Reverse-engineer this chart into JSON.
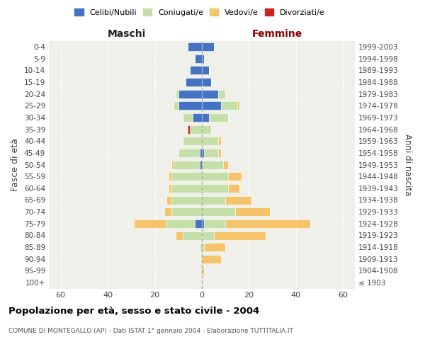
{
  "age_groups": [
    "100+",
    "95-99",
    "90-94",
    "85-89",
    "80-84",
    "75-79",
    "70-74",
    "65-69",
    "60-64",
    "55-59",
    "50-54",
    "45-49",
    "40-44",
    "35-39",
    "30-34",
    "25-29",
    "20-24",
    "15-19",
    "10-14",
    "5-9",
    "0-4"
  ],
  "birth_years": [
    "≤ 1903",
    "1904-1908",
    "1909-1913",
    "1914-1918",
    "1919-1923",
    "1924-1928",
    "1929-1933",
    "1934-1938",
    "1939-1943",
    "1944-1948",
    "1949-1953",
    "1954-1958",
    "1959-1963",
    "1964-1968",
    "1969-1973",
    "1974-1978",
    "1979-1983",
    "1984-1988",
    "1989-1993",
    "1994-1998",
    "1999-2003"
  ],
  "males_celibi": [
    0,
    0,
    0,
    0,
    0,
    3,
    0,
    0,
    0,
    0,
    1,
    1,
    0,
    0,
    4,
    10,
    10,
    7,
    5,
    3,
    6
  ],
  "males_coniugati": [
    0,
    0,
    0,
    1,
    8,
    12,
    13,
    13,
    13,
    13,
    11,
    9,
    8,
    5,
    4,
    2,
    1,
    0,
    0,
    0,
    0
  ],
  "males_vedovi": [
    0,
    0,
    0,
    0,
    3,
    14,
    3,
    2,
    1,
    1,
    1,
    0,
    0,
    0,
    0,
    0,
    0,
    0,
    0,
    0,
    0
  ],
  "males_divorziati": [
    0,
    0,
    0,
    0,
    0,
    0,
    0,
    0,
    0,
    0,
    0,
    0,
    0,
    1,
    0,
    0,
    0,
    0,
    0,
    0,
    0
  ],
  "females_nubili": [
    0,
    0,
    0,
    0,
    0,
    1,
    0,
    0,
    0,
    0,
    0,
    1,
    0,
    0,
    3,
    8,
    7,
    4,
    3,
    1,
    5
  ],
  "females_coniugate": [
    0,
    0,
    0,
    1,
    5,
    9,
    14,
    10,
    11,
    11,
    9,
    6,
    7,
    4,
    8,
    7,
    3,
    0,
    0,
    0,
    0
  ],
  "females_vedove": [
    0,
    1,
    8,
    9,
    22,
    36,
    15,
    11,
    5,
    6,
    2,
    1,
    1,
    0,
    0,
    1,
    0,
    0,
    0,
    0,
    0
  ],
  "females_divorziate": [
    0,
    0,
    0,
    0,
    0,
    0,
    0,
    0,
    0,
    0,
    0,
    0,
    0,
    0,
    0,
    0,
    0,
    0,
    0,
    0,
    0
  ],
  "color_celibi": "#4472C4",
  "color_coniugati": "#C5DFA8",
  "color_vedovi": "#F5C46A",
  "color_divorziati": "#CC2222",
  "xlim": 65,
  "bar_height": 0.72,
  "title": "Popolazione per età, sesso e stato civile - 2004",
  "subtitle": "COMUNE DI MONTEGALLO (AP) - Dati ISTAT 1° gennaio 2004 - Elaborazione TUTTITALIA.IT",
  "ylabel_left": "Fasce di età",
  "ylabel_right": "Anni di nascita",
  "label_maschi": "Maschi",
  "label_femmine": "Femmine",
  "legend_labels": [
    "Celibi/Nubili",
    "Coniugati/e",
    "Vedovi/e",
    "Divorziati/e"
  ],
  "bg_color": "#f0f0ea"
}
